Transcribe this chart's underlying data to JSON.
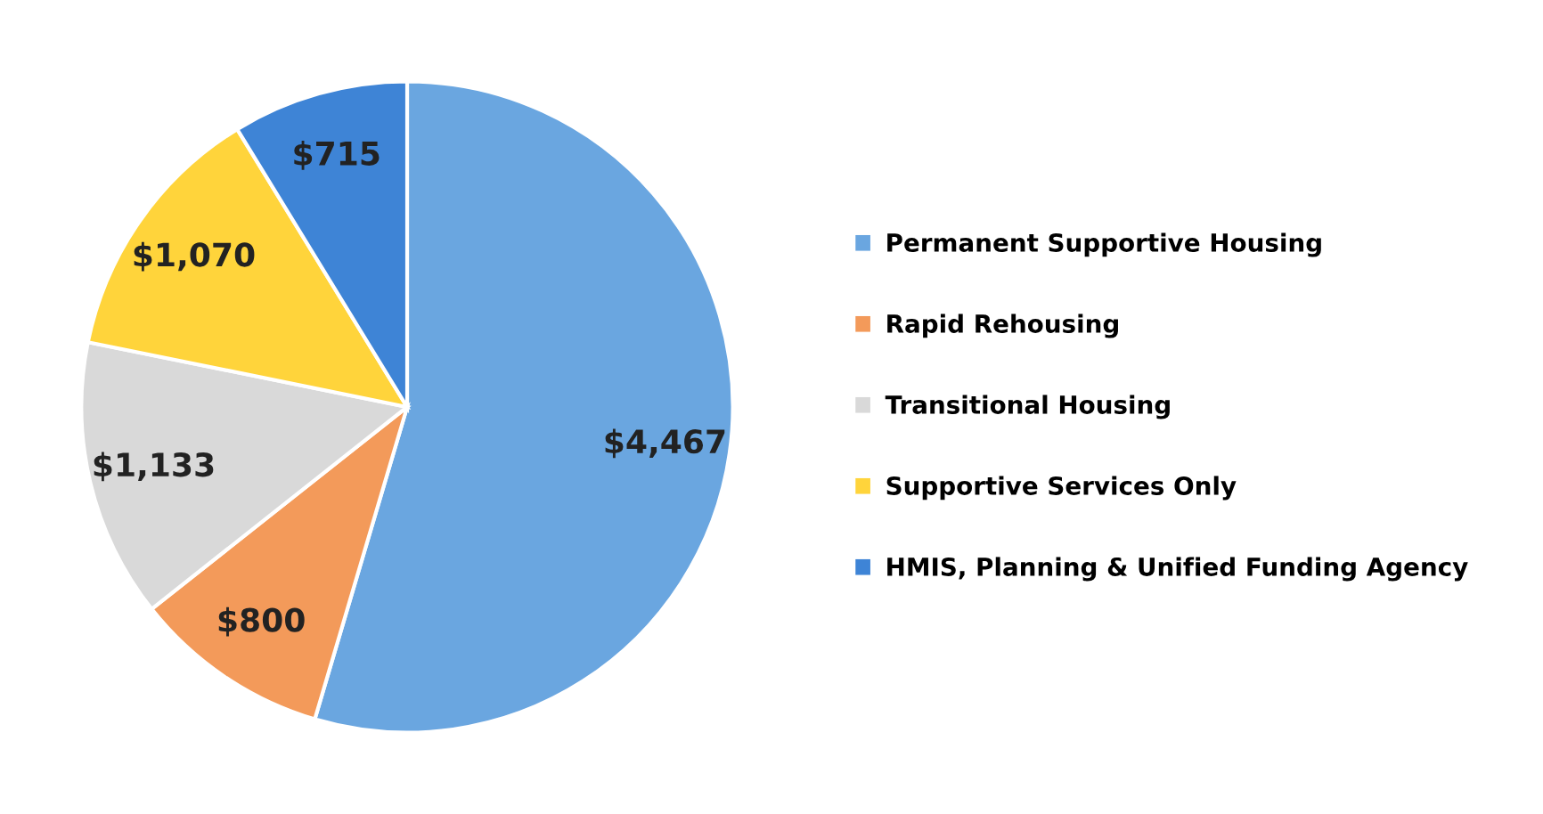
{
  "chart_data": {
    "type": "pie",
    "categories": [
      "Permanent Supportive Housing",
      "Rapid Rehousing",
      "Transitional Housing",
      "Supportive Services Only",
      "HMIS, Planning & Unified Funding Agency"
    ],
    "values": [
      4467,
      800,
      1133,
      1070,
      715
    ],
    "value_labels": [
      "$4,467",
      "$800",
      "$1,133",
      "$1,070",
      "$715"
    ],
    "colors": [
      "#6aa6e0",
      "#f39a5a",
      "#d9d9d9",
      "#ffd43b",
      "#3e84d6"
    ],
    "legend": "right"
  }
}
